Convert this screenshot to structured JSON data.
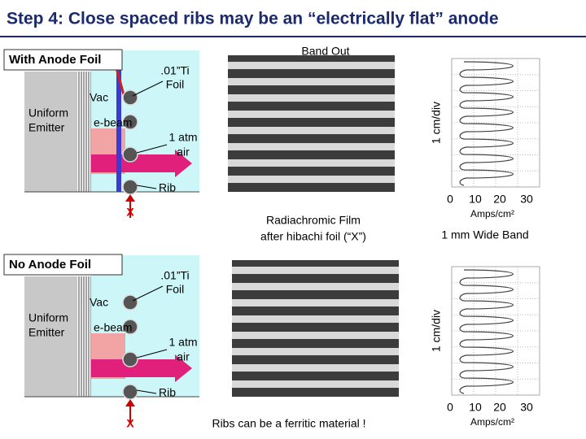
{
  "title": "Step 4: Close spaced ribs may be an “electrically flat” anode",
  "panels": [
    {
      "label": "With Anode Foil",
      "vac": "Vac",
      "emitter": [
        "Uniform",
        "Emitter"
      ],
      "ebeam": "e-beam",
      "foil": [
        ".01”Ti",
        "Foil"
      ],
      "air": [
        "1 atm",
        "air"
      ],
      "rib": "Rib",
      "x": "X",
      "plot": {
        "ylabel": "1 cm/div",
        "xticks": [
          "0",
          "10",
          "20",
          "30"
        ],
        "xlabel": "Amps/cm²"
      }
    },
    {
      "label": "No Anode Foil",
      "vac": "Vac",
      "emitter": [
        "Uniform",
        "Emitter"
      ],
      "ebeam": "e-beam",
      "foil": [
        ".01”Ti",
        "Foil"
      ],
      "air": [
        "1 atm",
        "air"
      ],
      "rib": "Rib",
      "x": "X",
      "plot": {
        "ylabel": "1 cm/div",
        "xticks": [
          "0",
          "10",
          "20",
          "30"
        ],
        "xlabel": "Amps/cm²"
      }
    }
  ],
  "band_out": "Band Out",
  "film_caption": [
    "Radiachromic Film",
    "after hibachi foil (“X”)"
  ],
  "band_caption": "1 mm Wide Band",
  "note": "Ribs can be a ferritic material !"
}
